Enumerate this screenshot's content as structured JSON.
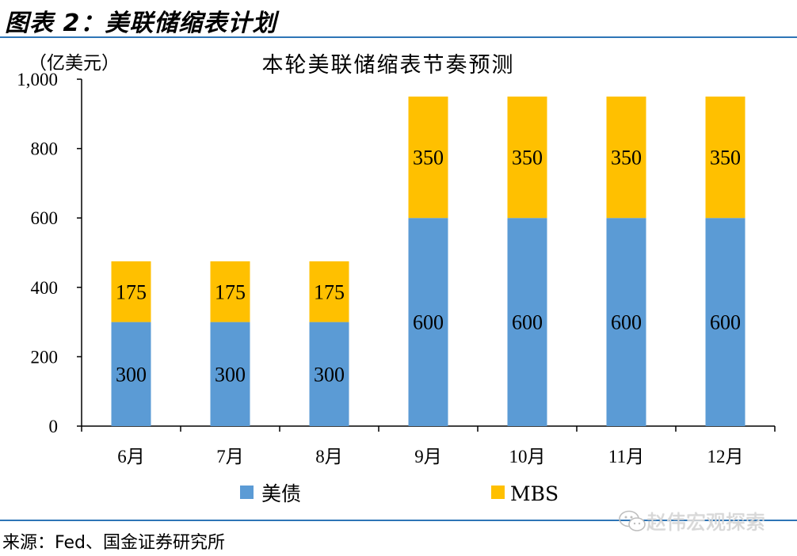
{
  "header": {
    "figure_title": "图表 2：美联储缩表计划"
  },
  "footer": {
    "source": "来源：Fed、国金证券研究所"
  },
  "watermark": {
    "text": "赵伟宏观探索"
  },
  "colors": {
    "rule": "#2e75b6",
    "treasury": "#5b9bd5",
    "mbs": "#ffc000"
  },
  "chart_data": {
    "type": "bar",
    "stacked": true,
    "title": "本轮美联储缩表节奏预测",
    "unit_label": "（亿美元）",
    "categories": [
      "6月",
      "7月",
      "8月",
      "9月",
      "10月",
      "11月",
      "12月"
    ],
    "series": [
      {
        "name": "美债",
        "values": [
          300,
          300,
          300,
          600,
          600,
          600,
          600
        ],
        "color": "#5b9bd5"
      },
      {
        "name": "MBS",
        "values": [
          175,
          175,
          175,
          350,
          350,
          350,
          350
        ],
        "color": "#ffc000"
      }
    ],
    "ylim": [
      0,
      1000
    ],
    "yticks": [
      0,
      200,
      400,
      600,
      800,
      1000
    ],
    "ytick_labels": [
      "0",
      "200",
      "400",
      "600",
      "800",
      "1,000"
    ],
    "data_labels": true,
    "grid": false,
    "legend_position": "bottom"
  }
}
